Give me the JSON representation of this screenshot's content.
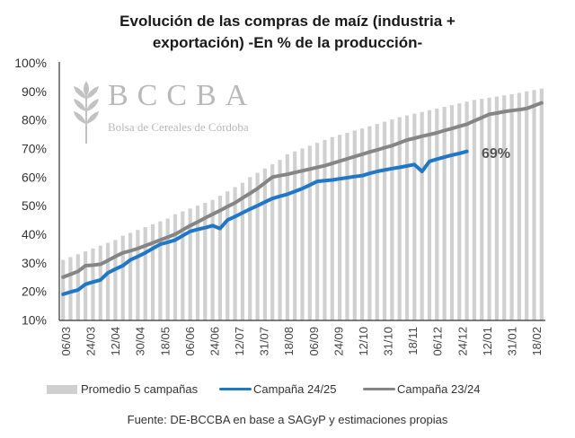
{
  "title_line1": "Evolución de las compras de maíz (industria +",
  "title_line2": "exportación)  -En % de la producción-",
  "logo": {
    "letters": "BCCBA",
    "subtitle": "Bolsa de Cereales de Córdoba"
  },
  "legend": [
    {
      "label": "Promedio 5 campañas",
      "color": "#cfcfcf"
    },
    {
      "label": "Campaña 24/25",
      "color": "#1f77c8"
    },
    {
      "label": "Campaña 23/24",
      "color": "#858585"
    }
  ],
  "source": "Fuente: DE-BCCBA en base a SAGyP y estimaciones propias",
  "end_label": "69%",
  "chart_data": {
    "type": "bar+line",
    "title": "Evolución de las compras de maíz (industria + exportación) -En % de la producción-",
    "xlabel": "",
    "ylabel": "",
    "ylim": [
      10,
      100
    ],
    "yticks": [
      "10%",
      "20%",
      "30%",
      "40%",
      "50%",
      "60%",
      "70%",
      "80%",
      "90%",
      "100%"
    ],
    "ytick_values": [
      10,
      20,
      30,
      40,
      50,
      60,
      70,
      80,
      90,
      100
    ],
    "x_tick_labels": [
      "06/03",
      "24/03",
      "12/04",
      "30/04",
      "18/05",
      "06/06",
      "24/06",
      "12/07",
      "31/07",
      "18/08",
      "06/09",
      "24/09",
      "12/10",
      "31/10",
      "18/11",
      "06/12",
      "24/12",
      "12/01",
      "31/01",
      "18/02"
    ],
    "n_points": 65,
    "legend_position": "bottom",
    "series": [
      {
        "name": "Promedio 5 campañas",
        "type": "bar",
        "values": [
          31,
          32,
          33,
          34,
          35,
          36,
          37,
          38,
          39.5,
          40.5,
          41.5,
          42.5,
          43.5,
          44.5,
          45.5,
          47,
          48,
          49,
          50,
          51,
          52,
          53.5,
          55,
          56.5,
          58,
          60,
          61.5,
          63,
          64.5,
          66,
          68,
          69,
          70,
          71,
          72,
          73,
          74,
          74.8,
          75.5,
          76.3,
          77,
          77.8,
          78.6,
          79.4,
          80.2,
          81,
          81.6,
          82.2,
          82.8,
          83.4,
          84,
          84.6,
          85.2,
          85.8,
          86.4,
          87,
          87.4,
          87.8,
          88.2,
          88.6,
          89,
          89.5,
          90,
          90.5,
          91
        ]
      },
      {
        "name": "Campaña 24/25",
        "type": "line",
        "values": [
          19,
          19.8,
          20.5,
          22.5,
          23.3,
          24,
          26.5,
          27.8,
          29,
          31,
          32.2,
          33.5,
          35,
          36.5,
          37.2,
          38,
          39.5,
          41,
          41.7,
          42.3,
          43,
          42,
          45,
          46.2,
          47.5,
          48.8,
          50,
          51.3,
          52.5,
          53.3,
          54,
          55,
          56,
          57.2,
          58.5,
          58.8,
          59,
          59.4,
          59.8,
          60.2,
          60.5,
          61.3,
          62,
          62.5,
          63,
          63.4,
          63.9,
          64.4,
          62,
          65.5,
          66.3,
          67,
          67.7,
          68.3,
          69
        ]
      },
      {
        "name": "Campaña 23/24",
        "type": "line",
        "values": [
          25,
          26,
          27,
          29,
          29.2,
          29.5,
          30.8,
          32.2,
          33.5,
          34.2,
          35,
          36,
          37,
          38,
          39,
          40,
          41.5,
          43,
          44.3,
          45.7,
          47,
          48.3,
          49.7,
          51,
          52.7,
          54.3,
          56,
          58,
          60,
          60.5,
          61,
          61.6,
          62.2,
          62.8,
          63.4,
          64,
          64.8,
          65.6,
          66.4,
          67.2,
          68,
          68.8,
          69.5,
          70.3,
          71,
          72,
          73,
          73.6,
          74.3,
          74.9,
          75.5,
          76.3,
          77,
          77.8,
          78.5,
          79.7,
          80.8,
          82,
          82.4,
          82.9,
          83.3,
          83.6,
          84,
          85,
          86
        ]
      }
    ]
  }
}
